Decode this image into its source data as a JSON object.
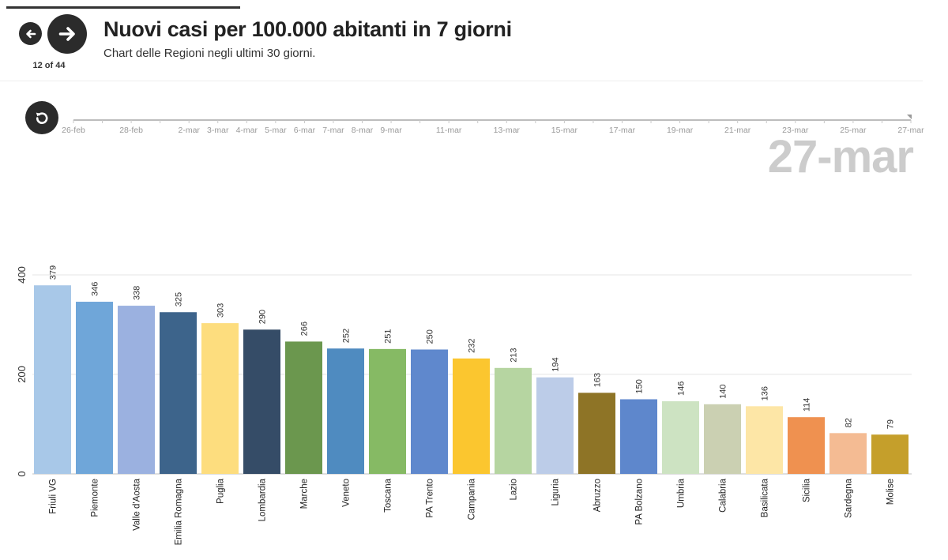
{
  "header": {
    "title": "Nuovi casi per 100.000 abitanti in 7 giorni",
    "subtitle": "Chart delle Regioni negli ultimi 30 giorni.",
    "slide_counter": "12 of 44"
  },
  "timeline": {
    "current_date": "27-mar",
    "progress_fraction": 1.0,
    "ticks": [
      {
        "label": "26-feb",
        "day": 0
      },
      {
        "label": "28-feb",
        "day": 2
      },
      {
        "label": "2-mar",
        "day": 4
      },
      {
        "label": "3-mar",
        "day": 5
      },
      {
        "label": "4-mar",
        "day": 6
      },
      {
        "label": "5-mar",
        "day": 7
      },
      {
        "label": "6-mar",
        "day": 8
      },
      {
        "label": "7-mar",
        "day": 9
      },
      {
        "label": "8-mar",
        "day": 10
      },
      {
        "label": "9-mar",
        "day": 11
      },
      {
        "label": "11-mar",
        "day": 13
      },
      {
        "label": "13-mar",
        "day": 15
      },
      {
        "label": "15-mar",
        "day": 17
      },
      {
        "label": "17-mar",
        "day": 19
      },
      {
        "label": "19-mar",
        "day": 21
      },
      {
        "label": "21-mar",
        "day": 23
      },
      {
        "label": "23-mar",
        "day": 25
      },
      {
        "label": "25-mar",
        "day": 27
      },
      {
        "label": "27-mar",
        "day": 29
      }
    ]
  },
  "chart_data": {
    "type": "bar",
    "title": "Nuovi casi per 100.000 abitanti in 7 giorni",
    "ylim": [
      0,
      400
    ],
    "yticks": [
      0,
      200,
      400
    ],
    "grid": true,
    "categories": [
      "Friuli VG",
      "Piemonte",
      "Valle d'Aosta",
      "Emilia Romagna",
      "Puglia",
      "Lombardia",
      "Marche",
      "Veneto",
      "Toscana",
      "PA Trento",
      "Campania",
      "Lazio",
      "Liguria",
      "Abruzzo",
      "PA Bolzano",
      "Umbria",
      "Calabria",
      "Basilicata",
      "Sicilia",
      "Sardegna",
      "Molise"
    ],
    "values": [
      379,
      346,
      338,
      325,
      303,
      290,
      266,
      252,
      251,
      250,
      232,
      213,
      194,
      163,
      150,
      146,
      140,
      136,
      114,
      82,
      79
    ],
    "colors": [
      "#a8c8e8",
      "#6fa6d9",
      "#9bb1e0",
      "#3d648b",
      "#fddd7e",
      "#354c67",
      "#6b974e",
      "#4f8bc0",
      "#86ba64",
      "#5f88cd",
      "#fbc62f",
      "#b6d5a1",
      "#bccce8",
      "#8e7426",
      "#5e87cc",
      "#cde3c2",
      "#cbd0b2",
      "#fde6a6",
      "#ef9150",
      "#f4bb93",
      "#c59f2b"
    ]
  }
}
